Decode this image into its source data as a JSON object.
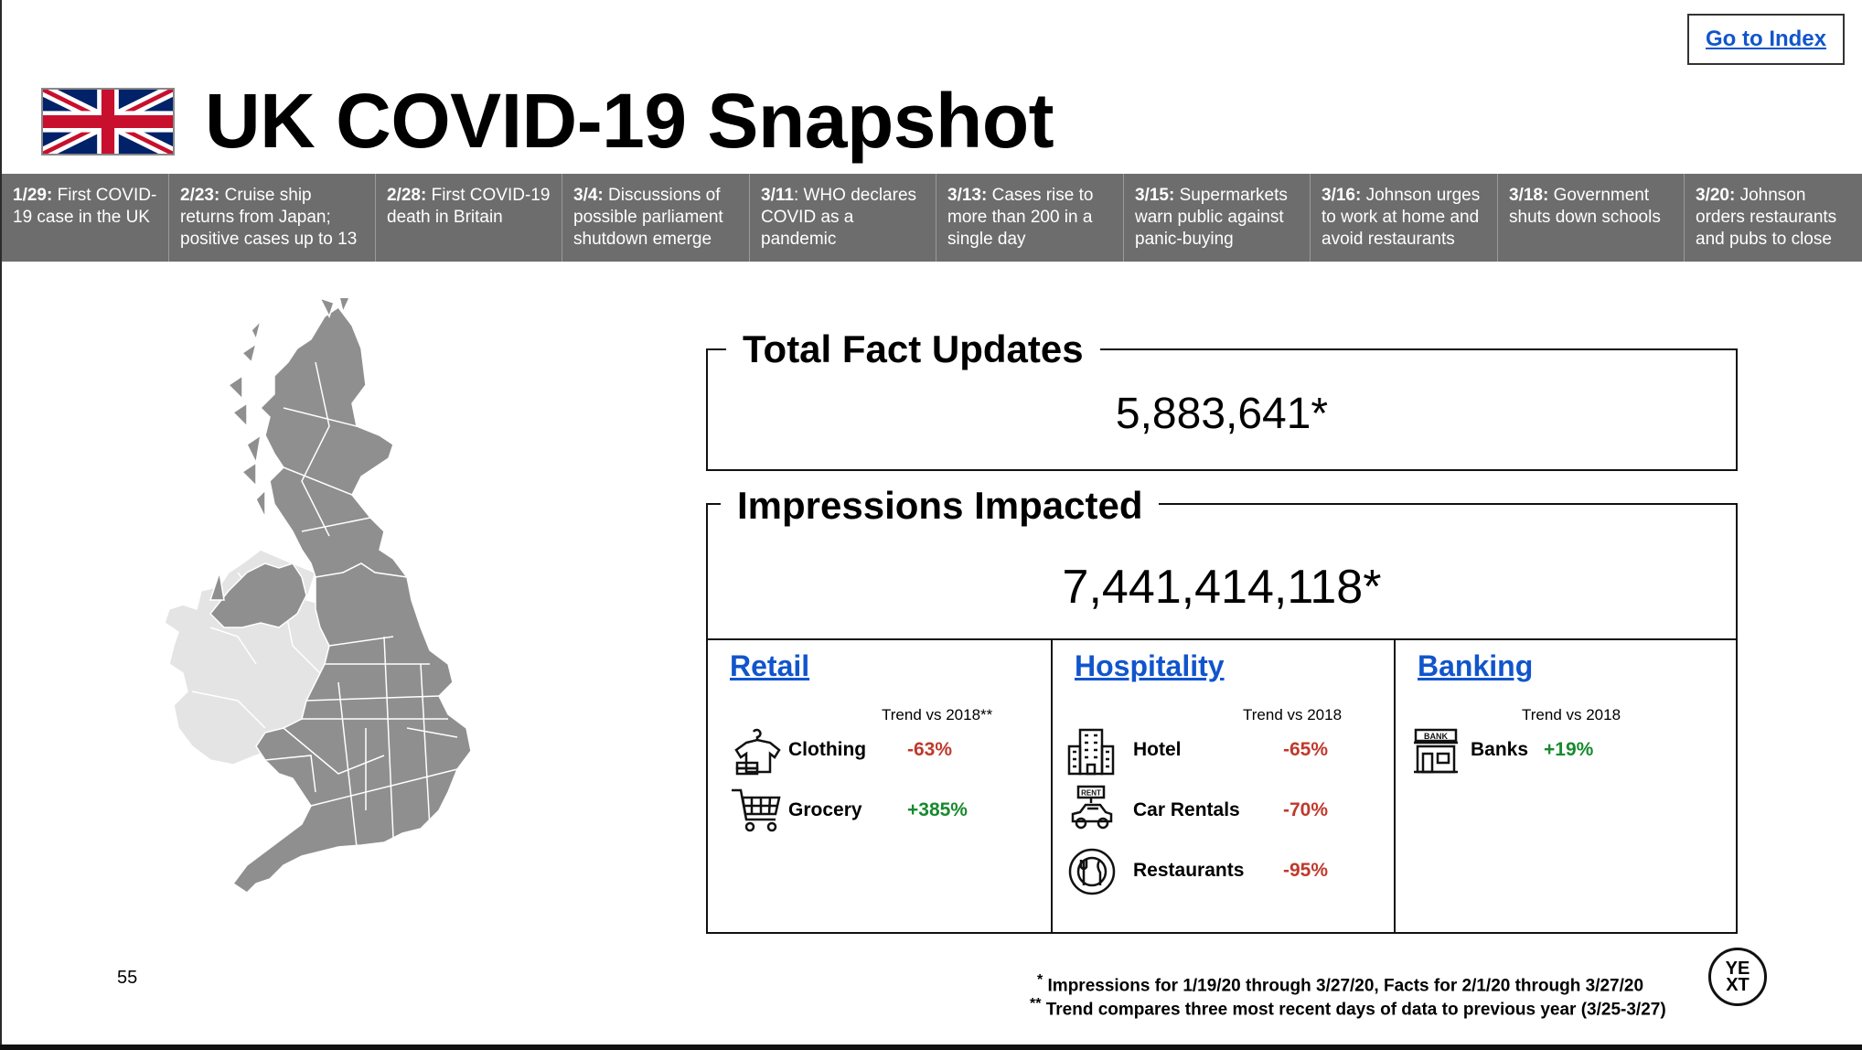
{
  "header": {
    "index_link": "Go to Index",
    "title": "UK COVID-19 Snapshot"
  },
  "timeline": [
    {
      "date": "1/29:",
      "text": " First COVID-19 case in the UK"
    },
    {
      "date": "2/23:",
      "text": " Cruise ship returns from Japan; positive cases up to 13"
    },
    {
      "date": "2/28:",
      "text": " First COVID-19 death in Britain"
    },
    {
      "date": "3/4:",
      "text": " Discussions of possible parliament shutdown emerge"
    },
    {
      "date": "3/11",
      "text": ": WHO declares COVID as a pandemic"
    },
    {
      "date": "3/13:",
      "text": " Cases rise to more than 200 in a single day"
    },
    {
      "date": "3/15:",
      "text": " Supermarkets warn public against panic-buying"
    },
    {
      "date": "3/16:",
      "text": " Johnson urges to work at home and avoid restaurants"
    },
    {
      "date": "3/18:",
      "text": " Government shuts down schools"
    },
    {
      "date": "3/20:",
      "text": " Johnson orders restaurants and pubs to close"
    }
  ],
  "facts": {
    "title": "Total Fact Updates",
    "value": "5,883,641*"
  },
  "impressions": {
    "title": "Impressions Impacted",
    "value": "7,441,414,118*"
  },
  "sectors": {
    "retail": {
      "title": "Retail",
      "trend_label": "Trend vs 2018**",
      "rows": [
        {
          "label": "Clothing",
          "value": "-63%",
          "icon": "clothing-icon"
        },
        {
          "label": "Grocery",
          "value": "+385%",
          "icon": "shopping-cart-icon"
        }
      ]
    },
    "hospitality": {
      "title": "Hospitality",
      "trend_label": "Trend vs 2018",
      "rows": [
        {
          "label": "Hotel",
          "value": "-65%",
          "icon": "hotel-icon"
        },
        {
          "label": "Car Rentals",
          "value": "-70%",
          "icon": "car-rental-icon",
          "icon_text": "RENT"
        },
        {
          "label": "Restaurants",
          "value": "-95%",
          "icon": "restaurant-icon"
        }
      ]
    },
    "banking": {
      "title": "Banking",
      "trend_label": "Trend vs 2018",
      "rows": [
        {
          "label": "Banks",
          "value": "+19%",
          "icon": "bank-icon",
          "icon_text": "BANK"
        }
      ]
    }
  },
  "colors": {
    "negative": "#c0392b",
    "positive": "#178a2e",
    "link": "#1155cc",
    "timeline_bg": "#6d6d6d",
    "map_uk": "#8f8f8f",
    "map_ireland": "#e4e4e4"
  },
  "footer": {
    "page_number": "55",
    "note1_mark": "*",
    "note1": "Impressions for 1/19/20 through 3/27/20, Facts for 2/1/20 through 3/27/20",
    "note2_mark": "**",
    "note2": "Trend compares three most recent days of data to previous year (3/25-3/27)",
    "logo_line1": "YE",
    "logo_line2": "XT"
  }
}
